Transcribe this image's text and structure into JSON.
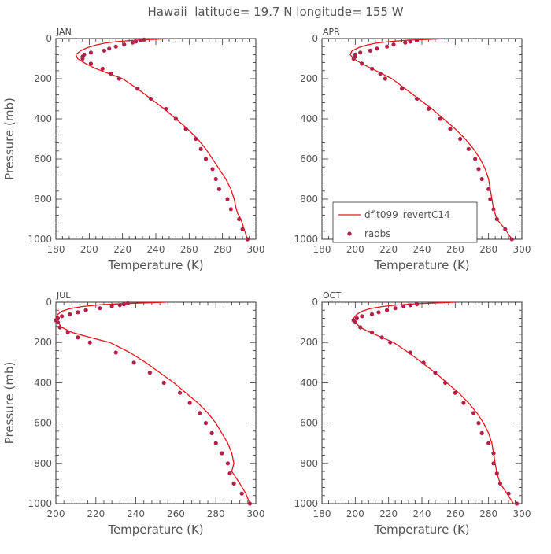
{
  "figure": {
    "title": "Hawaii  latitude= 19.7 N longitude= 155 W"
  },
  "colors": {
    "model_line": "#e8141c",
    "obs_marker": "#b3204a",
    "axis": "#333333",
    "text": "#555555"
  },
  "legend": {
    "model_label": "dflt099_revertC14",
    "obs_label": "raobs"
  },
  "chart_data": [
    {
      "type": "line",
      "title": "JAN",
      "xlabel": "Temperature (K)",
      "ylabel": "Pressure (mb)",
      "xlim": [
        180,
        300
      ],
      "ylim": [
        1000,
        0
      ],
      "xticks": [
        180,
        200,
        220,
        240,
        260,
        280,
        300
      ],
      "yticks": [
        0,
        200,
        400,
        600,
        800,
        1000
      ],
      "grid": false,
      "series": [
        {
          "name": "dflt099_revertC14",
          "kind": "line",
          "points": [
            [
              251,
              0
            ],
            [
              240,
              4
            ],
            [
              228,
              8
            ],
            [
              218,
              14
            ],
            [
              210,
              22
            ],
            [
              204,
              32
            ],
            [
              199,
              45
            ],
            [
              195,
              60
            ],
            [
              192,
              80
            ],
            [
              193,
              100
            ],
            [
              198,
              125
            ],
            [
              204,
              150
            ],
            [
              212,
              175
            ],
            [
              220,
              200
            ],
            [
              229,
              250
            ],
            [
              237,
              300
            ],
            [
              245,
              350
            ],
            [
              252,
              400
            ],
            [
              259,
              450
            ],
            [
              265,
              500
            ],
            [
              270,
              550
            ],
            [
              274,
              600
            ],
            [
              278,
              650
            ],
            [
              282,
              700
            ],
            [
              285,
              750
            ],
            [
              287,
              800
            ],
            [
              288,
              840
            ],
            [
              289,
              870
            ],
            [
              291,
              900
            ],
            [
              293,
              950
            ],
            [
              295,
              1000
            ]
          ]
        },
        {
          "name": "raobs",
          "kind": "scatter",
          "points": [
            [
              233,
              5
            ],
            [
              231,
              10
            ],
            [
              228,
              15
            ],
            [
              226,
              20
            ],
            [
              221,
              30
            ],
            [
              216,
              40
            ],
            [
              212,
              50
            ],
            [
              209,
              60
            ],
            [
              201,
              70
            ],
            [
              197,
              80
            ],
            [
              196,
              90
            ],
            [
              196,
              100
            ],
            [
              201,
              125
            ],
            [
              208,
              150
            ],
            [
              213,
              175
            ],
            [
              218,
              200
            ],
            [
              229,
              250
            ],
            [
              237,
              300
            ],
            [
              246,
              350
            ],
            [
              252,
              400
            ],
            [
              258,
              450
            ],
            [
              264,
              500
            ],
            [
              267,
              550
            ],
            [
              270,
              600
            ],
            [
              274,
              650
            ],
            [
              276,
              700
            ],
            [
              278,
              750
            ],
            [
              283,
              800
            ],
            [
              285,
              850
            ],
            [
              290,
              900
            ],
            [
              292,
              950
            ],
            [
              295,
              1000
            ]
          ]
        }
      ]
    },
    {
      "type": "line",
      "title": "APR",
      "xlabel": "Temperature (K)",
      "ylabel": "",
      "xlim": [
        180,
        300
      ],
      "ylim": [
        1000,
        0
      ],
      "xticks": [
        180,
        200,
        220,
        240,
        260,
        280,
        300
      ],
      "yticks": [
        0,
        200,
        400,
        600,
        800,
        1000
      ],
      "grid": false,
      "series": [
        {
          "name": "dflt099_revertC14",
          "kind": "line",
          "points": [
            [
              256,
              0
            ],
            [
              245,
              4
            ],
            [
              232,
              8
            ],
            [
              222,
              14
            ],
            [
              213,
              22
            ],
            [
              207,
              32
            ],
            [
              202,
              45
            ],
            [
              198,
              62
            ],
            [
              197,
              80
            ],
            [
              199,
              100
            ],
            [
              204,
              125
            ],
            [
              210,
              150
            ],
            [
              216,
              175
            ],
            [
              222,
              200
            ],
            [
              230,
              250
            ],
            [
              238,
              300
            ],
            [
              246,
              350
            ],
            [
              253,
              400
            ],
            [
              260,
              450
            ],
            [
              266,
              500
            ],
            [
              271,
              550
            ],
            [
              275,
              600
            ],
            [
              278,
              650
            ],
            [
              280,
              700
            ],
            [
              281,
              750
            ],
            [
              282,
              800
            ],
            [
              283,
              850
            ],
            [
              285,
              900
            ],
            [
              290,
              950
            ],
            [
              294,
              1000
            ]
          ]
        },
        {
          "name": "raobs",
          "kind": "scatter",
          "points": [
            [
              237,
              10
            ],
            [
              233,
              15
            ],
            [
              230,
              20
            ],
            [
              223,
              30
            ],
            [
              219,
              40
            ],
            [
              213,
              50
            ],
            [
              209,
              60
            ],
            [
              203,
              70
            ],
            [
              200,
              80
            ],
            [
              200,
              90
            ],
            [
              199,
              100
            ],
            [
              204,
              125
            ],
            [
              210,
              150
            ],
            [
              215,
              175
            ],
            [
              218,
              200
            ],
            [
              228,
              250
            ],
            [
              237,
              300
            ],
            [
              244,
              350
            ],
            [
              251,
              400
            ],
            [
              257,
              450
            ],
            [
              263,
              500
            ],
            [
              268,
              550
            ],
            [
              272,
              600
            ],
            [
              274,
              650
            ],
            [
              276,
              700
            ],
            [
              280,
              750
            ],
            [
              281,
              800
            ],
            [
              283,
              850
            ],
            [
              285,
              900
            ],
            [
              290,
              950
            ],
            [
              294,
              1000
            ]
          ]
        }
      ]
    },
    {
      "type": "line",
      "title": "JUL",
      "xlabel": "Temperature (K)",
      "ylabel": "Pressure (mb)",
      "xlim": [
        200,
        300
      ],
      "ylim": [
        1000,
        0
      ],
      "xticks": [
        200,
        220,
        240,
        260,
        280,
        300
      ],
      "yticks": [
        0,
        200,
        400,
        600,
        800,
        1000
      ],
      "grid": false,
      "series": [
        {
          "name": "dflt099_revertC14",
          "kind": "line",
          "points": [
            [
              255,
              0
            ],
            [
              245,
              3
            ],
            [
              233,
              7
            ],
            [
              222,
              13
            ],
            [
              213,
              22
            ],
            [
              207,
              32
            ],
            [
              203,
              45
            ],
            [
              201,
              60
            ],
            [
              200,
              80
            ],
            [
              201,
              100
            ],
            [
              203,
              125
            ],
            [
              208,
              150
            ],
            [
              217,
              175
            ],
            [
              227,
              200
            ],
            [
              237,
              250
            ],
            [
              245,
              300
            ],
            [
              252,
              350
            ],
            [
              259,
              400
            ],
            [
              265,
              450
            ],
            [
              271,
              500
            ],
            [
              276,
              550
            ],
            [
              280,
              600
            ],
            [
              283,
              650
            ],
            [
              286,
              700
            ],
            [
              288,
              750
            ],
            [
              289,
              800
            ],
            [
              288,
              840
            ],
            [
              290,
              870
            ],
            [
              292,
              900
            ],
            [
              295,
              950
            ],
            [
              297,
              1000
            ]
          ]
        },
        {
          "name": "raobs",
          "kind": "scatter",
          "points": [
            [
              236,
              5
            ],
            [
              234,
              10
            ],
            [
              232,
              15
            ],
            [
              228,
              20
            ],
            [
              222,
              30
            ],
            [
              215,
              40
            ],
            [
              211,
              50
            ],
            [
              207,
              60
            ],
            [
              203,
              70
            ],
            [
              201,
              80
            ],
            [
              200,
              90
            ],
            [
              201,
              100
            ],
            [
              202,
              125
            ],
            [
              206,
              150
            ],
            [
              211,
              175
            ],
            [
              217,
              200
            ],
            [
              230,
              250
            ],
            [
              239,
              300
            ],
            [
              247,
              350
            ],
            [
              254,
              400
            ],
            [
              262,
              450
            ],
            [
              267,
              500
            ],
            [
              272,
              550
            ],
            [
              275,
              600
            ],
            [
              278,
              650
            ],
            [
              280,
              700
            ],
            [
              283,
              750
            ],
            [
              286,
              800
            ],
            [
              287,
              850
            ],
            [
              289,
              900
            ],
            [
              293,
              950
            ],
            [
              297,
              1000
            ]
          ]
        }
      ]
    },
    {
      "type": "line",
      "title": "OCT",
      "xlabel": "Temperature (K)",
      "ylabel": "",
      "xlim": [
        180,
        300
      ],
      "ylim": [
        1000,
        0
      ],
      "xticks": [
        180,
        200,
        220,
        240,
        260,
        280,
        300
      ],
      "yticks": [
        0,
        200,
        400,
        600,
        800,
        1000
      ],
      "grid": false,
      "series": [
        {
          "name": "dflt099_revertC14",
          "kind": "line",
          "points": [
            [
              260,
              0
            ],
            [
              248,
              4
            ],
            [
              236,
              8
            ],
            [
              225,
              14
            ],
            [
              216,
              22
            ],
            [
              209,
              32
            ],
            [
              204,
              45
            ],
            [
              201,
              60
            ],
            [
              199,
              80
            ],
            [
              200,
              100
            ],
            [
              203,
              125
            ],
            [
              209,
              150
            ],
            [
              216,
              175
            ],
            [
              223,
              200
            ],
            [
              232,
              250
            ],
            [
              240,
              300
            ],
            [
              248,
              350
            ],
            [
              255,
              400
            ],
            [
              262,
              450
            ],
            [
              268,
              500
            ],
            [
              273,
              550
            ],
            [
              277,
              600
            ],
            [
              280,
              650
            ],
            [
              282,
              700
            ],
            [
              283,
              750
            ],
            [
              284,
              800
            ],
            [
              285,
              850
            ],
            [
              287,
              900
            ],
            [
              291,
              950
            ],
            [
              295,
              1000
            ]
          ]
        },
        {
          "name": "raobs",
          "kind": "scatter",
          "points": [
            [
              237,
              10
            ],
            [
              233,
              15
            ],
            [
              229,
              20
            ],
            [
              224,
              30
            ],
            [
              219,
              40
            ],
            [
              214,
              50
            ],
            [
              210,
              60
            ],
            [
              204,
              70
            ],
            [
              201,
              80
            ],
            [
              199,
              90
            ],
            [
              200,
              100
            ],
            [
              203,
              125
            ],
            [
              210,
              150
            ],
            [
              216,
              175
            ],
            [
              221,
              200
            ],
            [
              233,
              250
            ],
            [
              241,
              300
            ],
            [
              248,
              350
            ],
            [
              254,
              400
            ],
            [
              260,
              450
            ],
            [
              265,
              500
            ],
            [
              271,
              550
            ],
            [
              274,
              600
            ],
            [
              276,
              650
            ],
            [
              280,
              700
            ],
            [
              283,
              750
            ],
            [
              283,
              800
            ],
            [
              285,
              850
            ],
            [
              287,
              900
            ],
            [
              292,
              950
            ],
            [
              297,
              1000
            ]
          ]
        }
      ]
    }
  ]
}
